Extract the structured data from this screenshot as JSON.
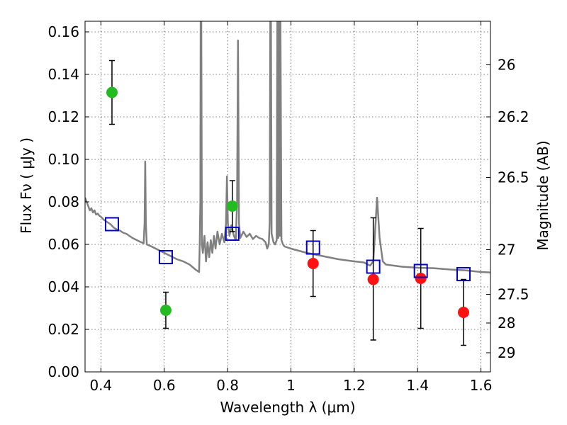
{
  "chart_data": {
    "type": "scatter",
    "xlabel": "Wavelength  λ (μm)",
    "ylabel": "Flux  Fν  ( μJy )",
    "y2label": "Magnitude (AB)",
    "xlim": [
      0.35,
      1.63
    ],
    "ylim": [
      0.0,
      0.165
    ],
    "grid": true,
    "x_ticks": [
      0.4,
      0.6,
      0.8,
      1.0,
      1.2,
      1.4,
      1.6
    ],
    "x_tick_labels": [
      "0.4",
      "0.6",
      "0.8",
      "1",
      "1.2",
      "1.4",
      "1.6"
    ],
    "y_ticks": [
      0.0,
      0.02,
      0.04,
      0.06,
      0.08,
      0.1,
      0.12,
      0.14,
      0.16
    ],
    "y_tick_labels": [
      "0.00",
      "0.02",
      "0.04",
      "0.06",
      "0.08",
      "0.10",
      "0.12",
      "0.14",
      "0.16"
    ],
    "y2_ticks": [
      {
        "flux": 0.1445,
        "label": "26"
      },
      {
        "flux": 0.12,
        "label": "26.2"
      },
      {
        "flux": 0.0915,
        "label": "26.5"
      },
      {
        "flux": 0.0575,
        "label": "27"
      },
      {
        "flux": 0.0365,
        "label": "27.5"
      },
      {
        "flux": 0.023,
        "label": "28"
      },
      {
        "flux": 0.009,
        "label": "29"
      }
    ],
    "series": [
      {
        "marker": "circle",
        "color": "#22bb22",
        "points": [
          {
            "x": 0.435,
            "y": 0.1315,
            "ylo": 0.1165,
            "yhi": 0.1465
          },
          {
            "x": 0.605,
            "y": 0.029,
            "ylo": 0.0205,
            "yhi": 0.0375
          },
          {
            "x": 0.815,
            "y": 0.078,
            "ylo": 0.066,
            "yhi": 0.09
          }
        ]
      },
      {
        "marker": "circle",
        "color": "#ff1111",
        "points": [
          {
            "x": 1.07,
            "y": 0.051,
            "ylo": 0.0355,
            "yhi": 0.0665
          },
          {
            "x": 1.26,
            "y": 0.0435,
            "ylo": 0.015,
            "yhi": 0.0725
          },
          {
            "x": 1.41,
            "y": 0.044,
            "ylo": 0.0205,
            "yhi": 0.0675
          },
          {
            "x": 1.545,
            "y": 0.028,
            "ylo": 0.0125,
            "yhi": 0.0435
          }
        ]
      },
      {
        "marker": "square",
        "color": "#0000cc",
        "points": [
          {
            "x": 0.435,
            "y": 0.0695
          },
          {
            "x": 0.605,
            "y": 0.054
          },
          {
            "x": 0.815,
            "y": 0.065
          },
          {
            "x": 1.07,
            "y": 0.0585
          },
          {
            "x": 1.26,
            "y": 0.0495
          },
          {
            "x": 1.41,
            "y": 0.0475
          },
          {
            "x": 1.545,
            "y": 0.046
          }
        ]
      },
      {
        "type": "line",
        "color": "#808080",
        "points": [
          [
            0.35,
            0.082
          ],
          [
            0.355,
            0.08
          ],
          [
            0.36,
            0.078
          ],
          [
            0.365,
            0.076
          ],
          [
            0.37,
            0.077
          ],
          [
            0.375,
            0.075
          ],
          [
            0.38,
            0.076
          ],
          [
            0.385,
            0.074
          ],
          [
            0.39,
            0.0745
          ],
          [
            0.395,
            0.0735
          ],
          [
            0.4,
            0.073
          ],
          [
            0.41,
            0.0715
          ],
          [
            0.42,
            0.0705
          ],
          [
            0.43,
            0.0695
          ],
          [
            0.44,
            0.068
          ],
          [
            0.45,
            0.067
          ],
          [
            0.46,
            0.0665
          ],
          [
            0.47,
            0.0655
          ],
          [
            0.48,
            0.065
          ],
          [
            0.49,
            0.064
          ],
          [
            0.5,
            0.063
          ],
          [
            0.52,
            0.0615
          ],
          [
            0.535,
            0.0605
          ],
          [
            0.538,
            0.07
          ],
          [
            0.54,
            0.099
          ],
          [
            0.542,
            0.07
          ],
          [
            0.545,
            0.06
          ],
          [
            0.56,
            0.059
          ],
          [
            0.58,
            0.0575
          ],
          [
            0.6,
            0.056
          ],
          [
            0.62,
            0.0545
          ],
          [
            0.64,
            0.053
          ],
          [
            0.66,
            0.052
          ],
          [
            0.68,
            0.0505
          ],
          [
            0.7,
            0.048
          ],
          [
            0.71,
            0.047
          ],
          [
            0.712,
            0.06
          ],
          [
            0.714,
            0.08
          ],
          [
            0.715,
            0.165
          ],
          [
            0.717,
            0.165
          ],
          [
            0.719,
            0.06
          ],
          [
            0.722,
            0.056
          ],
          [
            0.727,
            0.064
          ],
          [
            0.732,
            0.052
          ],
          [
            0.737,
            0.061
          ],
          [
            0.742,
            0.054
          ],
          [
            0.747,
            0.062
          ],
          [
            0.752,
            0.056
          ],
          [
            0.757,
            0.064
          ],
          [
            0.762,
            0.058
          ],
          [
            0.768,
            0.066
          ],
          [
            0.775,
            0.06
          ],
          [
            0.782,
            0.065
          ],
          [
            0.79,
            0.061
          ],
          [
            0.795,
            0.07
          ],
          [
            0.798,
            0.092
          ],
          [
            0.801,
            0.07
          ],
          [
            0.806,
            0.064
          ],
          [
            0.812,
            0.069
          ],
          [
            0.82,
            0.064
          ],
          [
            0.826,
            0.062
          ],
          [
            0.83,
            0.08
          ],
          [
            0.833,
            0.156
          ],
          [
            0.836,
            0.07
          ],
          [
            0.84,
            0.063
          ],
          [
            0.85,
            0.066
          ],
          [
            0.86,
            0.0635
          ],
          [
            0.87,
            0.065
          ],
          [
            0.88,
            0.0625
          ],
          [
            0.89,
            0.064
          ],
          [
            0.9,
            0.063
          ],
          [
            0.91,
            0.0625
          ],
          [
            0.92,
            0.061
          ],
          [
            0.925,
            0.058
          ],
          [
            0.93,
            0.06
          ],
          [
            0.933,
            0.07
          ],
          [
            0.935,
            0.165
          ],
          [
            0.937,
            0.165
          ],
          [
            0.939,
            0.065
          ],
          [
            0.945,
            0.061
          ],
          [
            0.95,
            0.06
          ],
          [
            0.955,
            0.062
          ],
          [
            0.957,
            0.165
          ],
          [
            0.96,
            0.063
          ],
          [
            0.962,
            0.165
          ],
          [
            0.965,
            0.064
          ],
          [
            0.967,
            0.165
          ],
          [
            0.97,
            0.062
          ],
          [
            0.975,
            0.06
          ],
          [
            0.98,
            0.059
          ],
          [
            1.0,
            0.058
          ],
          [
            1.05,
            0.056
          ],
          [
            1.1,
            0.0545
          ],
          [
            1.15,
            0.053
          ],
          [
            1.2,
            0.052
          ],
          [
            1.23,
            0.0515
          ],
          [
            1.25,
            0.05
          ],
          [
            1.26,
            0.052
          ],
          [
            1.265,
            0.064
          ],
          [
            1.272,
            0.082
          ],
          [
            1.28,
            0.063
          ],
          [
            1.29,
            0.052
          ],
          [
            1.3,
            0.0505
          ],
          [
            1.35,
            0.0495
          ],
          [
            1.4,
            0.049
          ],
          [
            1.45,
            0.0488
          ],
          [
            1.5,
            0.0482
          ],
          [
            1.55,
            0.0478
          ],
          [
            1.6,
            0.047
          ],
          [
            1.63,
            0.0468
          ]
        ]
      }
    ]
  }
}
